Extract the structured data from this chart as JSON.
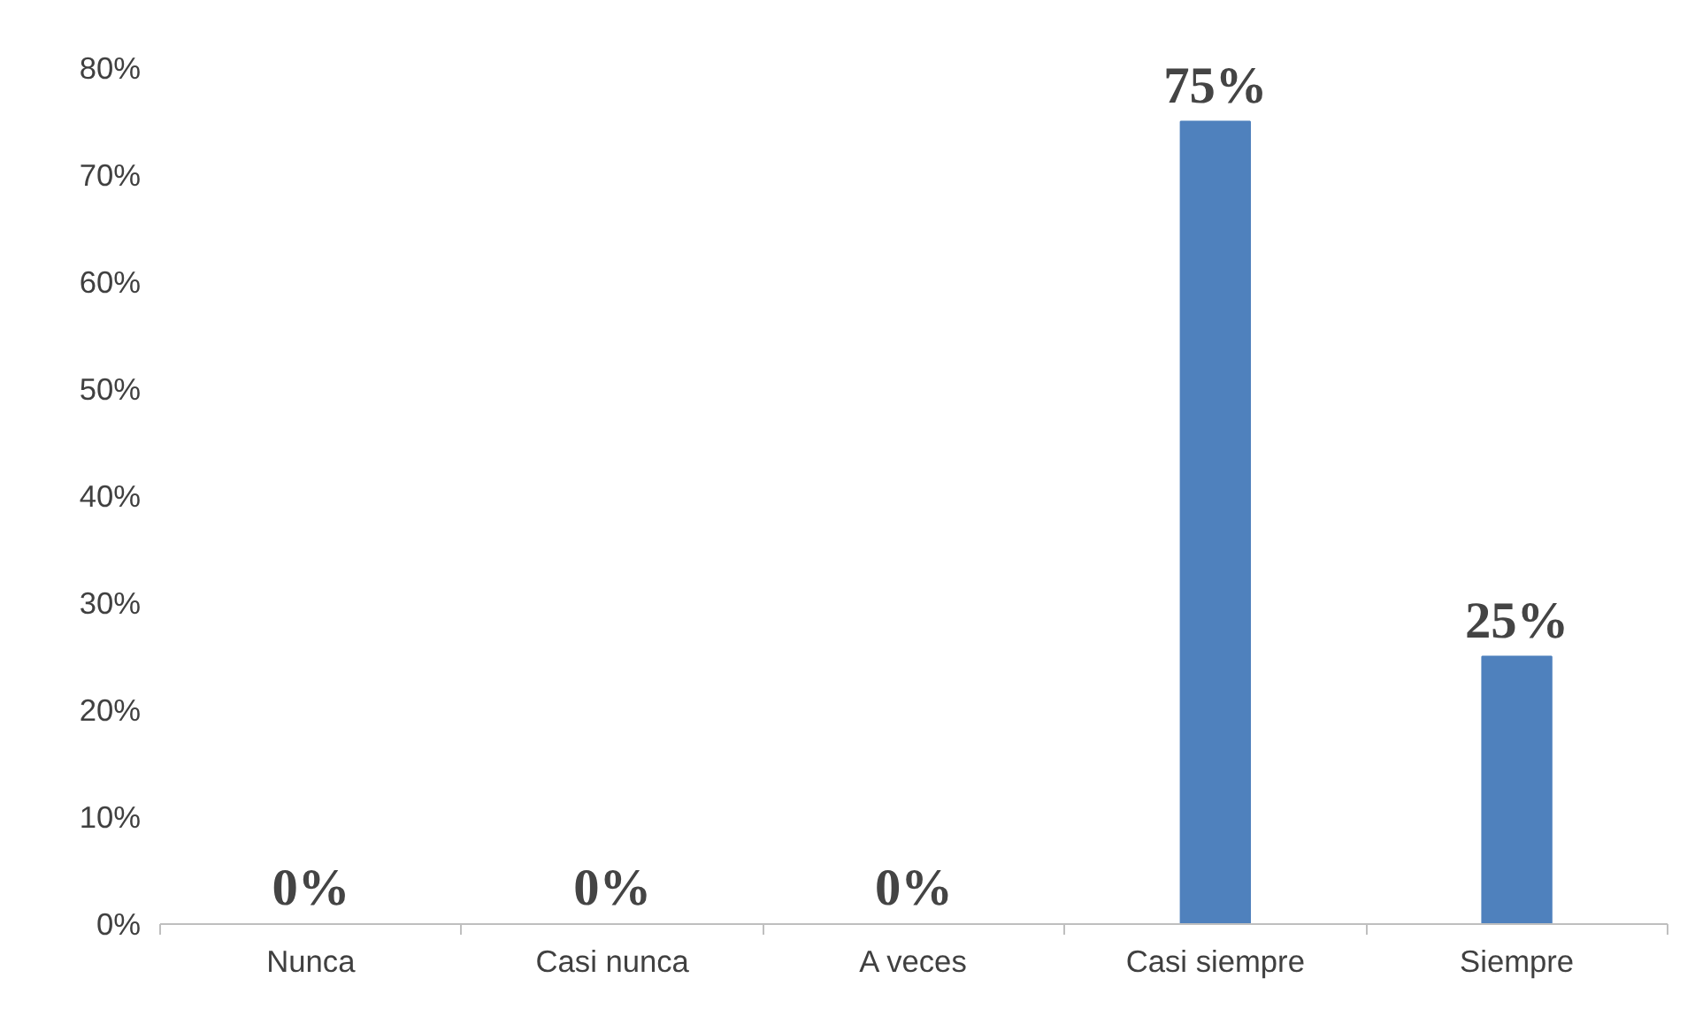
{
  "chart_data": {
    "type": "bar",
    "categories": [
      "Nunca",
      "Casi nunca",
      "A veces",
      "Casi siempre",
      "Siempre"
    ],
    "values": [
      0,
      0,
      0,
      75,
      25
    ],
    "color": "#4f81bd",
    "value_labels": [
      "0%",
      "0%",
      "0%",
      "75%",
      "25%"
    ],
    "ylim": [
      0,
      80
    ],
    "yticks": [
      {
        "value": 0,
        "label": "0%"
      },
      {
        "value": 10,
        "label": "10%"
      },
      {
        "value": 20,
        "label": "20%"
      },
      {
        "value": 30,
        "label": "30%"
      },
      {
        "value": 40,
        "label": "40%"
      },
      {
        "value": 50,
        "label": "50%"
      },
      {
        "value": 60,
        "label": "60%"
      },
      {
        "value": 70,
        "label": "70%"
      },
      {
        "value": 80,
        "label": "80%"
      }
    ],
    "grid": false
  }
}
